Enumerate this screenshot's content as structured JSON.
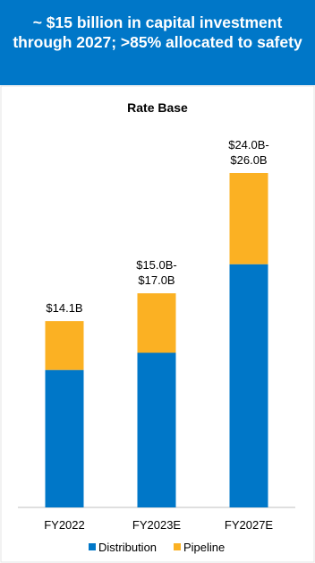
{
  "header": {
    "title": "~ $15 billion in capital investment through 2027; >85% allocated to safety"
  },
  "chart_data": {
    "type": "stacked-bar",
    "title": "Rate Base",
    "categories": [
      "FY2022",
      "FY2023E",
      "FY2027E"
    ],
    "series": [
      {
        "name": "Distribution",
        "color": "#0077c8",
        "values": [
          10.4,
          11.7,
          18.4
        ]
      },
      {
        "name": "Pipeline",
        "color": "#fbb123",
        "values": [
          3.7,
          4.5,
          6.9
        ]
      }
    ],
    "total_labels": [
      [
        "$14.1B"
      ],
      [
        "$15.0B-",
        "$17.0B"
      ],
      [
        "$24.0B-",
        "$26.0B"
      ]
    ],
    "legend": "bottom"
  }
}
